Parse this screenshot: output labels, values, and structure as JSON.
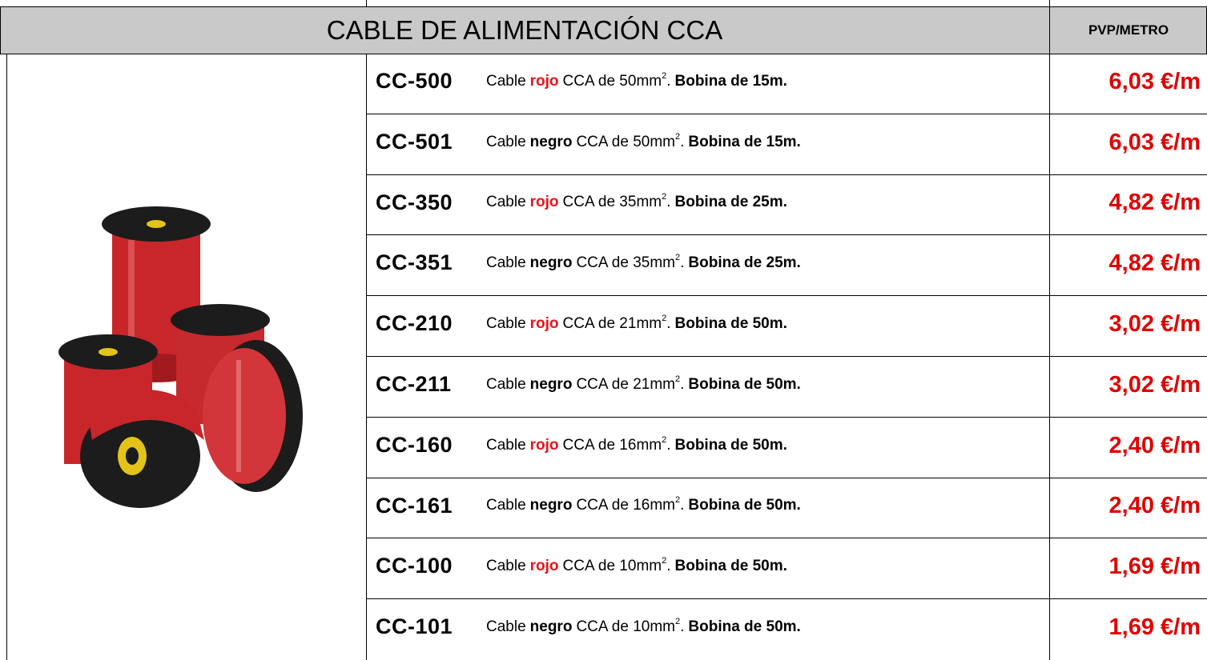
{
  "header": {
    "title": "CABLE DE ALIMENTACIÓN CCA",
    "price_heading": "PVP/METRO"
  },
  "rows": [
    {
      "code": "CC-500",
      "prefix": "Cable",
      "color": "rojo",
      "middle": "CCA de 50mm",
      "sup": "2",
      "dot": ".",
      "bobina": "Bobina de 15m.",
      "price": "6,03 €/m"
    },
    {
      "code": "CC-501",
      "prefix": "Cable",
      "color": "negro",
      "middle": "CCA de 50mm",
      "sup": "2",
      "dot": ".",
      "bobina": "Bobina de 15m.",
      "price": "6,03 €/m"
    },
    {
      "code": "CC-350",
      "prefix": "Cable",
      "color": "rojo",
      "middle": "CCA de 35mm",
      "sup": "2",
      "dot": ".",
      "bobina": "Bobina de 25m.",
      "price": "4,82 €/m"
    },
    {
      "code": "CC-351",
      "prefix": "Cable",
      "color": "negro",
      "middle": "CCA de 35mm",
      "sup": "2",
      "dot": ".",
      "bobina": "Bobina de 25m.",
      "price": "4,82 €/m"
    },
    {
      "code": "CC-210",
      "prefix": "Cable",
      "color": "rojo",
      "middle": "CCA de 21mm",
      "sup": "2",
      "dot": ".",
      "bobina": "Bobina de 50m.",
      "price": "3,02 €/m"
    },
    {
      "code": "CC-211",
      "prefix": "Cable",
      "color": "negro",
      "middle": "CCA de 21mm",
      "sup": "2",
      "dot": ".",
      "bobina": "Bobina de 50m.",
      "price": "3,02 €/m"
    },
    {
      "code": "CC-160",
      "prefix": "Cable",
      "color": "rojo",
      "middle": "CCA de 16mm",
      "sup": "2",
      "dot": ".",
      "bobina": "Bobina de 50m.",
      "price": "2,40 €/m"
    },
    {
      "code": "CC-161",
      "prefix": "Cable",
      "color": "negro",
      "middle": "CCA de 16mm",
      "sup": "2",
      "dot": ".",
      "bobina": "Bobina de 50m.",
      "price": "2,40 €/m"
    },
    {
      "code": "CC-100",
      "prefix": "Cable",
      "color": "rojo",
      "middle": "CCA de 10mm",
      "sup": "2",
      "dot": ".",
      "bobina": "Bobina de 50m.",
      "price": "1,69 €/m"
    },
    {
      "code": "CC-101",
      "prefix": "Cable",
      "color": "negro",
      "middle": "CCA de 10mm",
      "sup": "2",
      "dot": ".",
      "bobina": "Bobina de 50m.",
      "price": "1,69 €/m"
    }
  ]
}
